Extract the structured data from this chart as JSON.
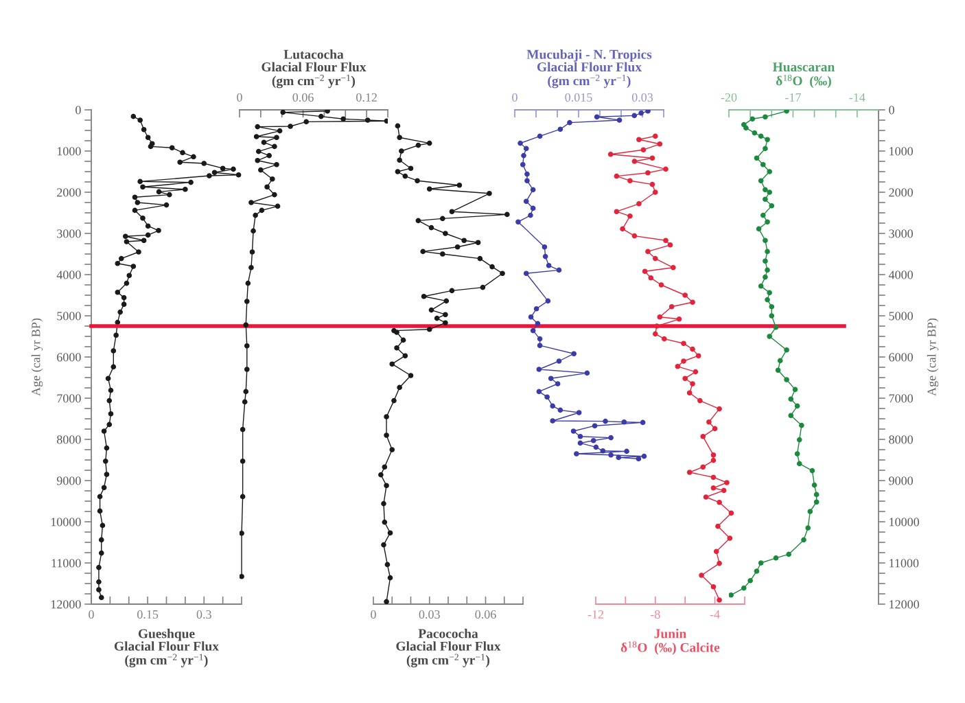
{
  "chart_data": [
    {
      "type": "line",
      "orientation": "horizontal",
      "marker": "circle",
      "line_style": "solid",
      "xlabel": "Gueshque\nGlacial Flour Flux\n(gm cm$^{−2}$ yr$^{−1}$)",
      "ylabel": "Age (cal yr BP)",
      "xlim": [
        0,
        0.4
      ],
      "xticks": [
        0,
        {
          "value": 0.05,
          "label": null
        },
        {
          "value": 0.1,
          "label": null
        },
        0.15,
        {
          "value": 0.2,
          "label": null
        },
        {
          "value": 0.25,
          "label": null
        },
        0.3,
        {
          "value": 0.35,
          "label": null
        },
        {
          "value": 0.4,
          "label": null
        }
      ],
      "ylim": [
        12000,
        0
      ],
      "yticks": [
        0,
        {
          "value": 250,
          "label": null
        },
        {
          "value": 500,
          "label": null
        },
        {
          "value": 750,
          "label": null
        },
        1000,
        {
          "value": 1250,
          "label": null
        },
        {
          "value": 1500,
          "label": null
        },
        {
          "value": 1750,
          "label": null
        },
        2000,
        {
          "value": 2250,
          "label": null
        },
        {
          "value": 2500,
          "label": null
        },
        {
          "value": 2750,
          "label": null
        },
        3000,
        {
          "value": 3250,
          "label": null
        },
        {
          "value": 3500,
          "label": null
        },
        {
          "value": 3750,
          "label": null
        },
        4000,
        {
          "value": 4250,
          "label": null
        },
        {
          "value": 4500,
          "label": null
        },
        {
          "value": 4750,
          "label": null
        },
        5000,
        {
          "value": 5250,
          "label": null
        },
        {
          "value": 5500,
          "label": null
        },
        {
          "value": 5750,
          "label": null
        },
        6000,
        {
          "value": 6250,
          "label": null
        },
        {
          "value": 6500,
          "label": null
        },
        {
          "value": 6750,
          "label": null
        },
        7000,
        {
          "value": 7250,
          "label": null
        },
        {
          "value": 7500,
          "label": null
        },
        {
          "value": 7750,
          "label": null
        },
        8000,
        {
          "value": 8250,
          "label": null
        },
        {
          "value": 8500,
          "label": null
        },
        {
          "value": 8750,
          "label": null
        },
        9000,
        {
          "value": 9250,
          "label": null
        },
        {
          "value": 9500,
          "label": null
        },
        {
          "value": 9750,
          "label": null
        },
        10000,
        {
          "value": 10250,
          "label": null
        },
        {
          "value": 10500,
          "label": null
        },
        {
          "value": 10750,
          "label": null
        },
        11000,
        {
          "value": 11250,
          "label": null
        },
        {
          "value": 11500,
          "label": null
        },
        {
          "value": 11750,
          "label": null
        },
        12000
      ],
      "ref_lines": [
        {
          "axis": "y",
          "value": 5250,
          "color": "#e8173a"
        }
      ],
      "series": [
        {
          "color": "#1a1a1a",
          "x": [
            160,
            250,
            480,
            670,
            820,
            890,
            920,
            1040,
            1140,
            1270,
            1300,
            1420,
            1440,
            1520,
            1580,
            1600,
            1740,
            1760,
            1870,
            1930,
            1990,
            2060,
            2120,
            2250,
            2310,
            2440,
            2630,
            2820,
            2930,
            3040,
            3070,
            3170,
            3200,
            3450,
            3610,
            3730,
            3800,
            4020,
            4210,
            4430,
            4560,
            4720,
            4910,
            5160,
            5470,
            5850,
            6240,
            6520,
            6810,
            7060,
            7380,
            7640,
            7800,
            8210,
            8530,
            8850,
            9170,
            9390,
            9740,
            10090,
            10440,
            10760,
            11110,
            11460,
            11650,
            11840
          ],
          "values": [
            0.112,
            0.13,
            0.14,
            0.151,
            0.162,
            0.158,
            0.215,
            0.243,
            0.272,
            0.236,
            0.3,
            0.35,
            0.378,
            0.328,
            0.392,
            0.314,
            0.13,
            0.265,
            0.137,
            0.25,
            0.18,
            0.208,
            0.116,
            0.123,
            0.2,
            0.116,
            0.137,
            0.151,
            0.179,
            0.151,
            0.091,
            0.14,
            0.094,
            0.126,
            0.08,
            0.07,
            0.112,
            0.101,
            0.094,
            0.07,
            0.087,
            0.087,
            0.077,
            0.07,
            0.066,
            0.059,
            0.059,
            0.045,
            0.052,
            0.048,
            0.052,
            0.048,
            0.034,
            0.041,
            0.038,
            0.041,
            0.034,
            0.023,
            0.023,
            0.03,
            0.027,
            0.027,
            0.02,
            0.02,
            0.02,
            0.027
          ]
        }
      ]
    },
    {
      "type": "line",
      "orientation": "horizontal",
      "marker": "circle",
      "line_style": "solid",
      "tick_labels": "x",
      "xlabel": "Lutacocha\nGlacial Flour Flux\n(gm cm$^{−2}$ yr$^{−1}$)",
      "xlim": [
        0,
        0.14
      ],
      "xticks": [
        0,
        {
          "value": 0.02,
          "label": null
        },
        {
          "value": 0.04,
          "label": null
        },
        0.06,
        {
          "value": 0.08,
          "label": null
        },
        {
          "value": 0.1,
          "label": null
        },
        0.12,
        {
          "value": 0.14,
          "label": null
        }
      ],
      "ylim": [
        12000,
        0
      ],
      "series": [
        {
          "color": "#1a1a1a",
          "x": [
            30,
            60,
            160,
            220,
            250,
            270,
            290,
            400,
            410,
            510,
            650,
            670,
            790,
            890,
            1010,
            1110,
            1230,
            1330,
            1460,
            1680,
            1870,
            2060,
            2250,
            2340,
            2440,
            2560,
            2940,
            3450,
            3830,
            4210,
            4650,
            5220,
            5730,
            6300,
            6840,
            7090,
            7760,
            8530,
            9390,
            10280,
            11330
          ],
          "values": [
            0.083,
            0.041,
            0.077,
            0.098,
            0.121,
            0.139,
            0.063,
            0.048,
            0.017,
            0.038,
            0.016,
            0.035,
            0.023,
            0.033,
            0.018,
            0.028,
            0.017,
            0.035,
            0.02,
            0.031,
            0.026,
            0.033,
            0.011,
            0.036,
            0.021,
            0.015,
            0.013,
            0.012,
            0.011,
            0.008,
            0.007,
            0.006,
            0.007,
            0.007,
            0.006,
            0.005,
            0.003,
            0.003,
            0.003,
            0.002,
            0.002
          ]
        }
      ]
    },
    {
      "type": "line",
      "orientation": "horizontal",
      "marker": "circle",
      "line_style": "solid",
      "tick_labels": "x",
      "xlabel": "Pacococha\nGlacial Flour Flux\n(gm cm$^{−2}$ yr$^{−1}$)",
      "xlim": [
        0,
        0.08
      ],
      "xticks": [
        0,
        {
          "value": 0.01,
          "label": null
        },
        {
          "value": 0.02,
          "label": null
        },
        0.03,
        {
          "value": 0.04,
          "label": null
        },
        {
          "value": 0.05,
          "label": null
        },
        0.06,
        {
          "value": 0.07,
          "label": null
        },
        {
          "value": 0.08,
          "label": null
        }
      ],
      "ylim": [
        12000,
        0
      ],
      "series": [
        {
          "color": "#1a1a1a",
          "x": [
            390,
            670,
            810,
            860,
            1000,
            1220,
            1420,
            1500,
            1610,
            1720,
            1830,
            1920,
            2030,
            2470,
            2540,
            2640,
            2690,
            2860,
            3000,
            3170,
            3220,
            3330,
            3440,
            3500,
            3610,
            3810,
            3970,
            4310,
            4390,
            4530,
            4640,
            4860,
            4970,
            5060,
            5170,
            5330,
            5360,
            5400,
            5590,
            5780,
            5970,
            6170,
            6450,
            6740,
            7060,
            7450,
            7900,
            8250,
            8670,
            8860,
            9120,
            9560,
            10010,
            10270,
            10560,
            11040,
            11360,
            11940
          ],
          "values": [
            0.013,
            0.014,
            0.03,
            0.024,
            0.015,
            0.014,
            0.02,
            0.013,
            0.017,
            0.0235,
            0.046,
            0.03,
            0.062,
            0.042,
            0.0715,
            0.037,
            0.024,
            0.031,
            0.0385,
            0.0485,
            0.056,
            0.045,
            0.0265,
            0.037,
            0.057,
            0.0635,
            0.069,
            0.0585,
            0.042,
            0.027,
            0.039,
            0.031,
            0.0385,
            0.034,
            0.0385,
            0.03,
            0.011,
            0.0125,
            0.016,
            0.0125,
            0.017,
            0.01,
            0.02,
            0.014,
            0.011,
            0.007,
            0.007,
            0.01,
            0.006,
            0.004,
            0.007,
            0.0055,
            0.006,
            0.009,
            0.0055,
            0.0075,
            0.009,
            0.007
          ]
        }
      ]
    },
    {
      "type": "line",
      "orientation": "horizontal",
      "marker": "circle",
      "line_style": "solid",
      "tick_labels": "x",
      "xlabel": "Mucubaji - N. Tropics\nGlacial Flour Flux\n(gm cm$^{−2}$ yr$^{−1}$)",
      "xlim": [
        0,
        0.035
      ],
      "xticks": [
        0,
        {
          "value": 0.005,
          "label": null
        },
        {
          "value": 0.01,
          "label": null
        },
        0.015,
        {
          "value": 0.02,
          "label": null
        },
        {
          "value": 0.025,
          "label": null
        },
        0.03,
        {
          "value": 0.035,
          "label": null
        }
      ],
      "ylim": [
        12000,
        0
      ],
      "series": [
        {
          "color": "#3c3ca8",
          "x": [
            30,
            80,
            140,
            170,
            250,
            310,
            470,
            640,
            810,
            940,
            1110,
            1330,
            1560,
            1720,
            1940,
            2220,
            2390,
            2560,
            2720,
            3330,
            3560,
            3780,
            3890,
            3970,
            4640,
            4830,
            5030,
            5190,
            5360,
            5560,
            5720,
            5920,
            6100,
            6300,
            6390,
            6520,
            6650,
            6840,
            6970,
            7190,
            7290,
            7350,
            7550,
            7560,
            7580,
            7590,
            7670,
            7800,
            7930,
            7960,
            8030,
            8090,
            8190,
            8280,
            8290,
            8350,
            8380,
            8410,
            8440,
            8470
          ],
          "values": [
            0.0313,
            0.0297,
            0.0281,
            0.0193,
            0.0246,
            0.0129,
            0.0107,
            0.0059,
            0.0013,
            0.0027,
            0.0021,
            0.0019,
            0.0029,
            0.0029,
            0.0043,
            0.0027,
            0.0043,
            0.0037,
            0.0008,
            0.007,
            0.0072,
            0.008,
            0.0104,
            0.0027,
            0.0078,
            0.0051,
            0.0038,
            0.0054,
            0.0043,
            0.0059,
            0.0059,
            0.0139,
            0.0104,
            0.0057,
            0.017,
            0.0085,
            0.0101,
            0.0057,
            0.0076,
            0.0089,
            0.0107,
            0.0151,
            0.0089,
            0.0213,
            0.0257,
            0.0301,
            0.0188,
            0.0138,
            0.0154,
            0.0226,
            0.0185,
            0.0154,
            0.0191,
            0.0207,
            0.0263,
            0.0145,
            0.0226,
            0.0304,
            0.0244,
            0.0291
          ]
        }
      ]
    },
    {
      "type": "line",
      "orientation": "horizontal",
      "marker": "circle",
      "line_style": "solid",
      "tick_labels": "x",
      "xlabel": "Junin\nδ$^{18}$O  (‰) Calcite",
      "xlim": [
        -12,
        -2
      ],
      "xticks": [
        -12,
        {
          "value": -10,
          "label": null
        },
        -8,
        {
          "value": -6,
          "label": null
        },
        -4,
        {
          "value": -2,
          "label": null
        }
      ],
      "ylim": [
        12000,
        0
      ],
      "series": [
        {
          "color": "#e3243b",
          "x": [
            640,
            720,
            830,
            970,
            1080,
            1170,
            1250,
            1440,
            1530,
            1610,
            1720,
            1810,
            2000,
            2280,
            2470,
            2580,
            2890,
            3060,
            3170,
            3280,
            3440,
            3610,
            3830,
            3920,
            4080,
            4250,
            4500,
            4670,
            4780,
            5030,
            5080,
            5250,
            5440,
            5560,
            5670,
            5810,
            5970,
            6100,
            6230,
            6360,
            6520,
            6650,
            6870,
            7060,
            7260,
            7580,
            7740,
            7930,
            8380,
            8510,
            8670,
            8800,
            8920,
            9050,
            9180,
            9240,
            9400,
            9530,
            9790,
            10110,
            10400,
            10720,
            11010,
            11300,
            11580,
            11900
          ],
          "values": [
            -8.0,
            -9.1,
            -7.7,
            -8.8,
            -11.0,
            -8.2,
            -9.4,
            -7.3,
            -8.5,
            -10.6,
            -9.7,
            -8.2,
            -8.0,
            -9.1,
            -10.6,
            -9.7,
            -10.2,
            -9.4,
            -7.3,
            -7.0,
            -8.5,
            -8.0,
            -6.8,
            -8.7,
            -8.3,
            -7.6,
            -6.0,
            -5.5,
            -6.9,
            -7.7,
            -6.4,
            -7.9,
            -8.0,
            -7.4,
            -6.1,
            -5.5,
            -5.1,
            -6.1,
            -6.5,
            -5.3,
            -6.0,
            -5.5,
            -5.7,
            -5.0,
            -3.7,
            -4.4,
            -4.0,
            -4.8,
            -4.1,
            -4.1,
            -4.8,
            -5.7,
            -4.1,
            -3.2,
            -4.1,
            -3.4,
            -4.6,
            -3.7,
            -2.9,
            -3.8,
            -3.0,
            -3.9,
            -3.7,
            -4.9,
            -4.1,
            -3.7
          ]
        }
      ]
    },
    {
      "type": "line",
      "orientation": "horizontal",
      "marker": "circle",
      "line_style": "solid",
      "xlabel": "Huascaran\nδ$^{18}$O  (‰)",
      "ylabel": "Age (cal yr BP)",
      "xlim": [
        -20,
        -13
      ],
      "xticks": [
        -20,
        {
          "value": -19,
          "label": null
        },
        {
          "value": -18,
          "label": null
        },
        -17,
        {
          "value": -16,
          "label": null
        },
        {
          "value": -15,
          "label": null
        },
        -14,
        {
          "value": -13,
          "label": null
        }
      ],
      "ylim": [
        12000,
        0
      ],
      "yticks": [
        0,
        {
          "value": 250,
          "label": null
        },
        {
          "value": 500,
          "label": null
        },
        {
          "value": 750,
          "label": null
        },
        1000,
        {
          "value": 1250,
          "label": null
        },
        {
          "value": 1500,
          "label": null
        },
        {
          "value": 1750,
          "label": null
        },
        2000,
        {
          "value": 2250,
          "label": null
        },
        {
          "value": 2500,
          "label": null
        },
        {
          "value": 2750,
          "label": null
        },
        3000,
        {
          "value": 3250,
          "label": null
        },
        {
          "value": 3500,
          "label": null
        },
        {
          "value": 3750,
          "label": null
        },
        4000,
        {
          "value": 4250,
          "label": null
        },
        {
          "value": 4500,
          "label": null
        },
        {
          "value": 4750,
          "label": null
        },
        5000,
        {
          "value": 5250,
          "label": null
        },
        {
          "value": 5500,
          "label": null
        },
        {
          "value": 5750,
          "label": null
        },
        6000,
        {
          "value": 6250,
          "label": null
        },
        {
          "value": 6500,
          "label": null
        },
        {
          "value": 6750,
          "label": null
        },
        7000,
        {
          "value": 7250,
          "label": null
        },
        {
          "value": 7500,
          "label": null
        },
        {
          "value": 7750,
          "label": null
        },
        8000,
        {
          "value": 8250,
          "label": null
        },
        {
          "value": 8500,
          "label": null
        },
        {
          "value": 8750,
          "label": null
        },
        9000,
        {
          "value": 9250,
          "label": null
        },
        {
          "value": 9500,
          "label": null
        },
        {
          "value": 9750,
          "label": null
        },
        10000,
        {
          "value": 10250,
          "label": null
        },
        {
          "value": 10500,
          "label": null
        },
        {
          "value": 10750,
          "label": null
        },
        11000,
        {
          "value": 11250,
          "label": null
        },
        {
          "value": 11500,
          "label": null
        },
        {
          "value": 11750,
          "label": null
        },
        12000
      ],
      "series": [
        {
          "color": "#1b8a3e",
          "x": [
            30,
            170,
            220,
            360,
            440,
            560,
            640,
            720,
            940,
            1170,
            1330,
            1500,
            1720,
            1940,
            2000,
            2170,
            2330,
            2560,
            2720,
            2890,
            3170,
            3440,
            3670,
            3890,
            4060,
            4280,
            4440,
            4610,
            4780,
            5000,
            5280,
            5500,
            5830,
            6090,
            6320,
            6550,
            6790,
            7020,
            7190,
            7420,
            7660,
            8010,
            8350,
            8590,
            8760,
            9110,
            9340,
            9520,
            9750,
            10150,
            10440,
            10790,
            10880,
            11000,
            11200,
            11430,
            11610,
            11780
          ],
          "values": [
            -17.3,
            -18.3,
            -18.9,
            -19.3,
            -19.2,
            -18.8,
            -18.5,
            -18.2,
            -18.3,
            -18.7,
            -18.4,
            -18.1,
            -18.5,
            -18.3,
            -18.1,
            -18.3,
            -18.0,
            -18.4,
            -18.2,
            -18.6,
            -18.3,
            -18.2,
            -18.3,
            -18.2,
            -18.3,
            -18.5,
            -18.1,
            -18.2,
            -18.0,
            -18.0,
            -17.8,
            -18.1,
            -17.3,
            -17.6,
            -17.7,
            -17.3,
            -16.9,
            -17.1,
            -16.8,
            -17.1,
            -16.6,
            -16.7,
            -16.8,
            -16.7,
            -16.1,
            -16.0,
            -15.9,
            -15.9,
            -16.2,
            -16.3,
            -16.5,
            -17.2,
            -17.8,
            -18.5,
            -18.7,
            -19.0,
            -19.3,
            -19.9
          ]
        }
      ]
    }
  ]
}
